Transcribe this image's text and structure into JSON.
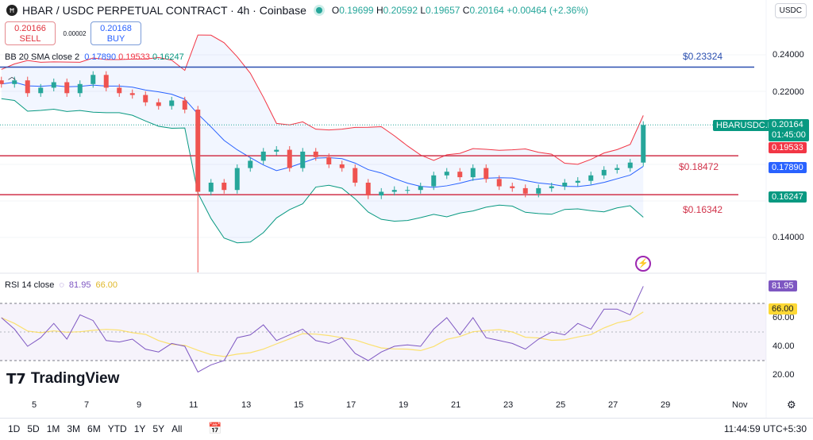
{
  "header": {
    "title": "HBAR / USDC PERPETUAL CONTRACT · 4h · Coinbase",
    "open": "0.19699",
    "high": "0.20592",
    "low": "0.19657",
    "close": "0.20164",
    "change": "+0.00464 (+2.36%)",
    "currency": "USDC"
  },
  "trade": {
    "sell_price": "0.20166",
    "sell_label": "SELL",
    "spread": "0.00002",
    "buy_price": "0.20168",
    "buy_label": "BUY"
  },
  "bb": {
    "label": "BB 20 SMA close 2",
    "basis": "0.17890",
    "upper": "0.19533",
    "lower": "0.16247"
  },
  "price_axis": [
    "0.24000",
    "0.22000",
    "0.14000"
  ],
  "price_tags": {
    "symbol": "HBARUSDC.P",
    "last": "0.20164",
    "countdown": "01:45:00",
    "upper": "0.19533",
    "basis": "0.17890",
    "lower": "0.16247"
  },
  "hlines": [
    {
      "label": "$0.23324",
      "value": 0.23324,
      "color": "#2a4fb0"
    },
    {
      "label": "$0.18472",
      "value": 0.18472,
      "color": "#d1334a"
    },
    {
      "label": "$0.16342",
      "value": 0.16342,
      "color": "#d1334a"
    }
  ],
  "rsi": {
    "label": "RSI 14 close",
    "value": "81.95",
    "ma": "66.00",
    "axis": [
      "60.00",
      "40.00",
      "20.00"
    ],
    "upper_band": 70,
    "lower_band": 30
  },
  "x_axis": [
    "5",
    "7",
    "9",
    "11",
    "13",
    "15",
    "17",
    "19",
    "21",
    "23",
    "25",
    "27",
    "29",
    "Nov"
  ],
  "brand": "TradingView",
  "bottom": {
    "ranges": [
      "1D",
      "5D",
      "1M",
      "3M",
      "6M",
      "YTD",
      "1Y",
      "5Y",
      "All"
    ],
    "time": "11:44:59 UTC+5:30"
  },
  "colors": {
    "up": "#26a69a",
    "down": "#ef5350",
    "bb_basis": "#2962ff",
    "bb_upper": "#f23645",
    "bb_lower": "#089981",
    "rsi": "#7e57c2",
    "rsi_ma": "#fdd835"
  },
  "chart_data": {
    "type": "candlestick",
    "x_start_day": 3.75,
    "x_step_days": 0.5,
    "closes": [
      0.224,
      0.226,
      0.219,
      0.222,
      0.225,
      0.219,
      0.224,
      0.229,
      0.222,
      0.219,
      0.218,
      0.214,
      0.212,
      0.215,
      0.21,
      0.165,
      0.17,
      0.166,
      0.178,
      0.182,
      0.187,
      0.188,
      0.178,
      0.187,
      0.184,
      0.18,
      0.178,
      0.17,
      0.163,
      0.165,
      0.166,
      0.166,
      0.168,
      0.174,
      0.176,
      0.173,
      0.178,
      0.172,
      0.168,
      0.167,
      0.164,
      0.167,
      0.168,
      0.17,
      0.171,
      0.174,
      0.177,
      0.178,
      0.181,
      0.2016
    ],
    "rsi_values": [
      60,
      52,
      40,
      46,
      56,
      45,
      62,
      58,
      44,
      43,
      45,
      38,
      36,
      42,
      40,
      22,
      27,
      30,
      46,
      48,
      55,
      44,
      48,
      52,
      44,
      42,
      46,
      35,
      30,
      36,
      40,
      41,
      40,
      52,
      60,
      48,
      60,
      46,
      44,
      42,
      38,
      45,
      50,
      48,
      56,
      52,
      66,
      66,
      62,
      82
    ],
    "ylim": [
      0.13,
      0.245
    ],
    "rsi_ylim": [
      10,
      85
    ]
  }
}
